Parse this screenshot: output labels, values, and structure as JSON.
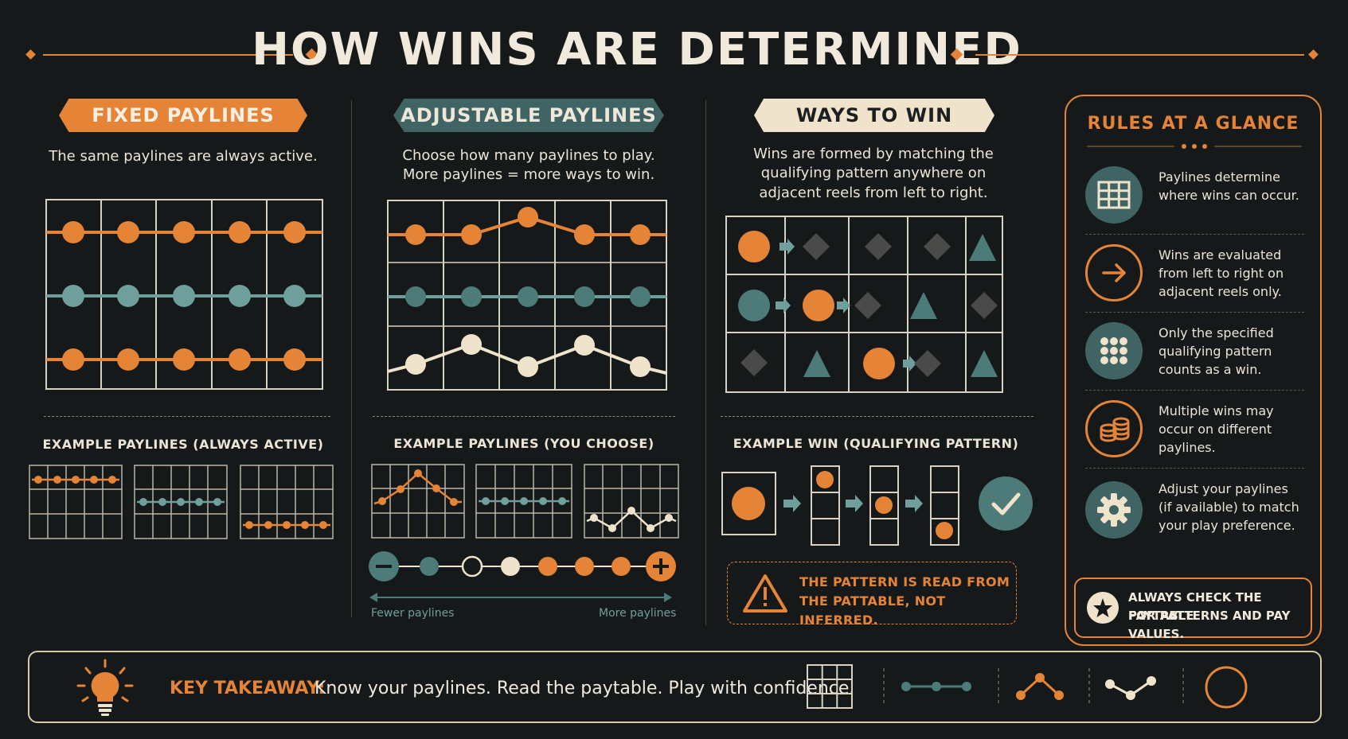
{
  "title": "HOW WINS ARE DETERMINED",
  "colors": {
    "orange": "#e58336",
    "teal": "#4c7b79",
    "cream": "#efe3cc",
    "background": "#15191a"
  },
  "fixed": {
    "label": "FIXED PAYLINES",
    "description": "The same paylines are always active.",
    "example_label": "EXAMPLE PAYLINES (ALWAYS ACTIVE)"
  },
  "adjustable": {
    "label": "ADJUSTABLE PAYLINES",
    "description_line1": "Choose how many paylines to play.",
    "description_line2": "More paylines = more ways to win.",
    "example_label": "EXAMPLE PAYLINES (YOU CHOOSE)",
    "fewer": "Fewer paylines",
    "more": "More paylines"
  },
  "ways": {
    "label": "WAYS TO WIN",
    "description_line1": "Wins are formed by matching the",
    "description_line2": "qualifying pattern anywhere on",
    "description_line3": "adjacent reels from left to right.",
    "example_label": "EXAMPLE WIN (QUALIFYING PATTERN)",
    "warning_line1": "THE PATTERN IS READ FROM",
    "warning_line2": "THE PATTABLE, NOT INFERRED."
  },
  "rules": {
    "title": "RULES AT A GLANCE",
    "items": [
      {
        "icon": "grid-icon",
        "text": "Paylines determine where wins can occur."
      },
      {
        "icon": "arrow-right-icon",
        "text": "Wins are evaluated from left to right on adjacent reels only."
      },
      {
        "icon": "dots-grid-icon",
        "text": "Only the specified qualifying pattern counts as a win."
      },
      {
        "icon": "coins-icon",
        "text": "Multiple wins may occur on different paylines."
      },
      {
        "icon": "gear-icon",
        "text": "Adjust your paylines (if available) to match your play preference."
      }
    ],
    "check_line1": "ALWAYS CHECK THE PAYTABLE",
    "check_line2": "FOR PATTERNS AND PAY VALUES."
  },
  "takeaway": {
    "label": "KEY TAKEAWAY:",
    "text": "Know your paylines. Read the paytable. Play with confidence."
  }
}
